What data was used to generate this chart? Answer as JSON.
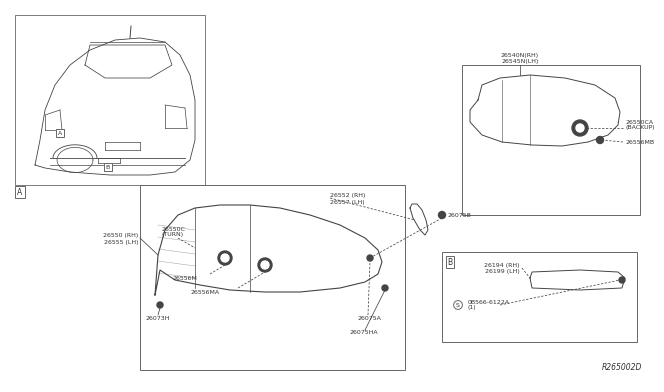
{
  "bg_color": "#ffffff",
  "ref_code": "R265002D",
  "labels": {
    "26540N_RH": "26540N(RH)",
    "26545N_LH": "26545N(LH)",
    "26552_RH": "26552 (RH)",
    "26557_LH": "26557 (LH)",
    "26550_RH": "26550 (RH)",
    "26555_LH": "26555 (LH)",
    "26550C_TURN": "26550C\n(TURN)",
    "26556M": "26556M",
    "26556MA": "26556MA",
    "26073H": "26073H",
    "26075A": "26075A",
    "26075B": "26075B",
    "26075HA": "26075HA",
    "26550CA_BACKUP": "26550CA\n(BACKUP)",
    "26556MB": "26556MB",
    "26194_RH": "26194 (RH)",
    "26199_LH": "26199 (LH)",
    "0B566_6122A": "0B566-6122A\n(1)",
    "box_A": "A",
    "box_B": "B"
  },
  "lc": "#444444",
  "tc": "#333333",
  "blc": "#666666"
}
